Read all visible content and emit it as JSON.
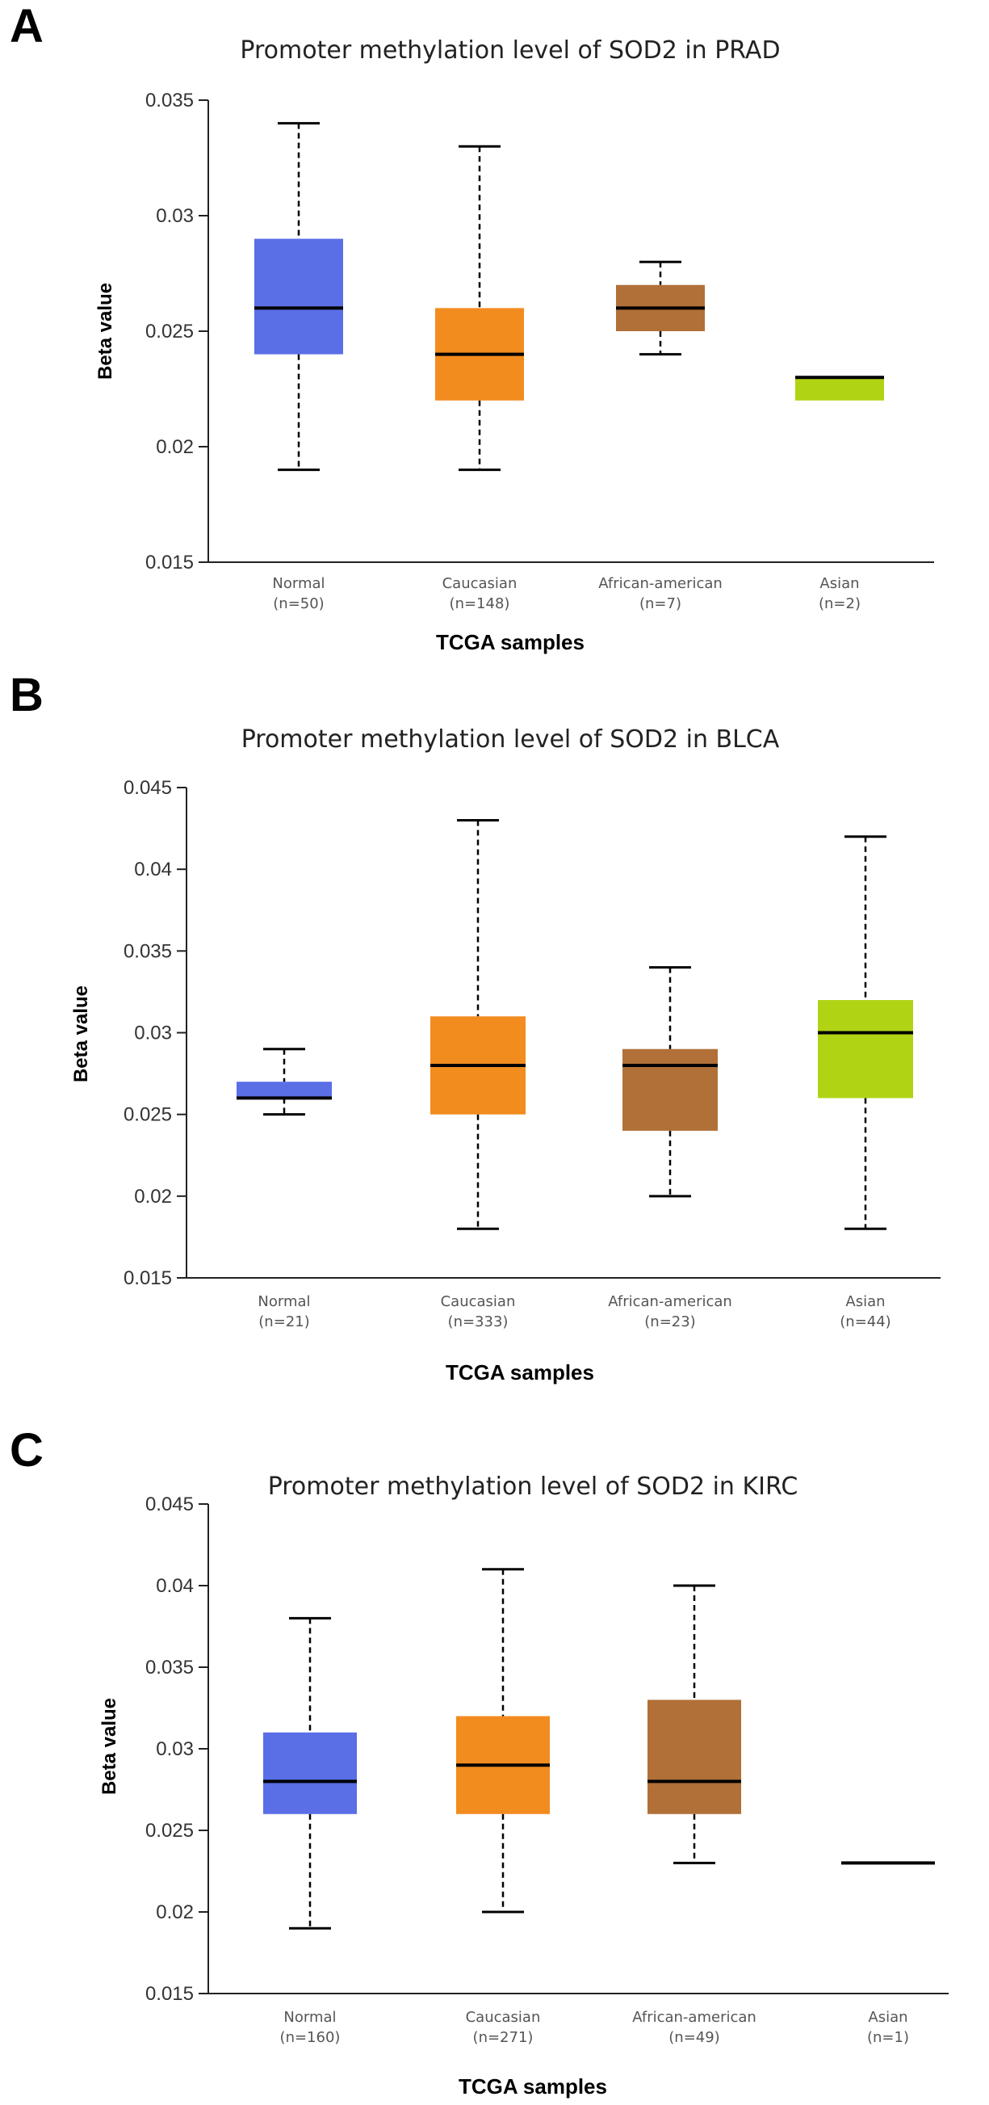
{
  "chart_data": [
    {
      "type": "box",
      "panel_label": "A",
      "title": "Promoter methylation level of SOD2 in PRAD",
      "xlabel": "TCGA samples",
      "ylabel": "Beta value",
      "ylim": [
        0.015,
        0.035
      ],
      "yticks": [
        "0.015",
        "0.02",
        "0.025",
        "0.03",
        "0.035"
      ],
      "categories": [
        {
          "name": "Normal",
          "n_label": "(n=50)",
          "color": "#5a6ee6",
          "min": 0.019,
          "q1": 0.024,
          "median": 0.026,
          "q3": 0.029,
          "max": 0.034
        },
        {
          "name": "Caucasian",
          "n_label": "(n=148)",
          "color": "#f28c1f",
          "min": 0.019,
          "q1": 0.022,
          "median": 0.024,
          "q3": 0.026,
          "max": 0.033
        },
        {
          "name": "African-american",
          "n_label": "(n=7)",
          "color": "#b07038",
          "min": 0.024,
          "q1": 0.025,
          "median": 0.026,
          "q3": 0.027,
          "max": 0.028
        },
        {
          "name": "Asian",
          "n_label": "(n=2)",
          "color": "#b0d414",
          "min": 0.022,
          "q1": 0.022,
          "median": 0.023,
          "q3": 0.023,
          "max": 0.023
        }
      ]
    },
    {
      "type": "box",
      "panel_label": "B",
      "title": "Promoter methylation level of SOD2 in BLCA",
      "xlabel": "TCGA samples",
      "ylabel": "Beta value",
      "ylim": [
        0.015,
        0.045
      ],
      "yticks": [
        "0.015",
        "0.02",
        "0.025",
        "0.03",
        "0.035",
        "0.04",
        "0.045"
      ],
      "categories": [
        {
          "name": "Normal",
          "n_label": "(n=21)",
          "color": "#5a6ee6",
          "min": 0.025,
          "q1": 0.026,
          "median": 0.026,
          "q3": 0.027,
          "max": 0.029
        },
        {
          "name": "Caucasian",
          "n_label": "(n=333)",
          "color": "#f28c1f",
          "min": 0.018,
          "q1": 0.025,
          "median": 0.028,
          "q3": 0.031,
          "max": 0.043
        },
        {
          "name": "African-american",
          "n_label": "(n=23)",
          "color": "#b07038",
          "min": 0.02,
          "q1": 0.024,
          "median": 0.028,
          "q3": 0.029,
          "max": 0.034
        },
        {
          "name": "Asian",
          "n_label": "(n=44)",
          "color": "#b0d414",
          "min": 0.018,
          "q1": 0.026,
          "median": 0.03,
          "q3": 0.032,
          "max": 0.042
        }
      ]
    },
    {
      "type": "box",
      "panel_label": "C",
      "title": "Promoter methylation level of SOD2 in KIRC",
      "xlabel": "TCGA samples",
      "ylabel": "Beta value",
      "ylim": [
        0.015,
        0.045
      ],
      "yticks": [
        "0.015",
        "0.02",
        "0.025",
        "0.03",
        "0.035",
        "0.04",
        "0.045"
      ],
      "categories": [
        {
          "name": "Normal",
          "n_label": "(n=160)",
          "color": "#5a6ee6",
          "min": 0.019,
          "q1": 0.026,
          "median": 0.028,
          "q3": 0.031,
          "max": 0.038
        },
        {
          "name": "Caucasian",
          "n_label": "(n=271)",
          "color": "#f28c1f",
          "min": 0.02,
          "q1": 0.026,
          "median": 0.029,
          "q3": 0.032,
          "max": 0.041
        },
        {
          "name": "African-american",
          "n_label": "(n=49)",
          "color": "#b07038",
          "min": 0.023,
          "q1": 0.026,
          "median": 0.028,
          "q3": 0.033,
          "max": 0.04
        },
        {
          "name": "Asian",
          "n_label": "(n=1)",
          "color": "#b0d414",
          "min": 0.023,
          "q1": 0.023,
          "median": 0.023,
          "q3": 0.023,
          "max": 0.023
        }
      ]
    }
  ]
}
